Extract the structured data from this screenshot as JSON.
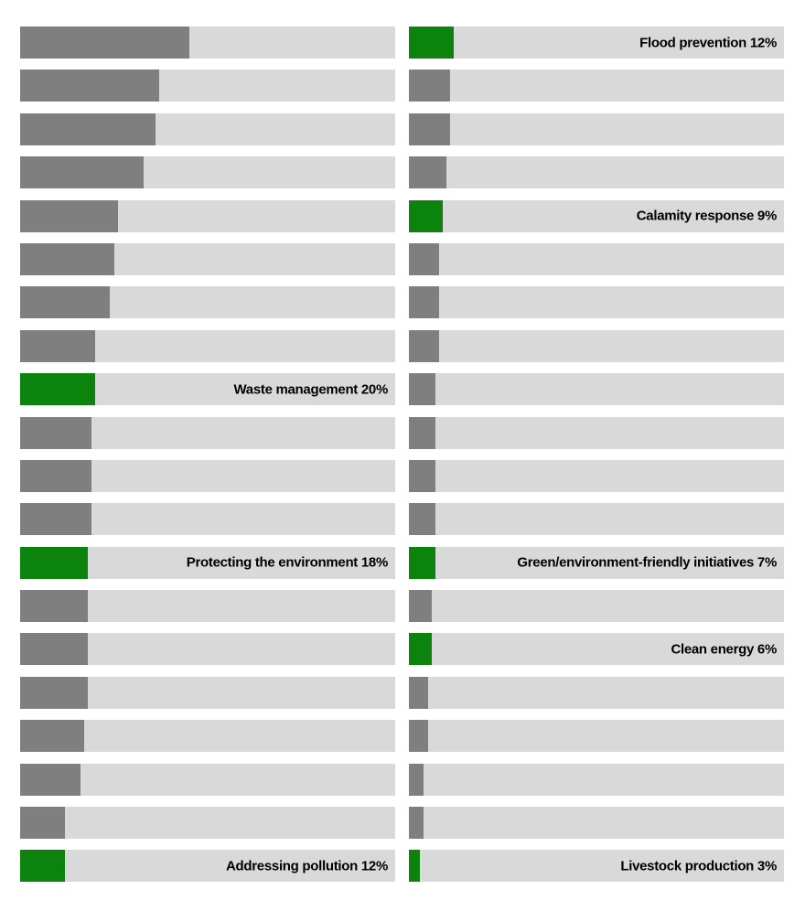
{
  "chart_data": {
    "type": "bar",
    "orientation": "horizontal",
    "title": "",
    "xlabel": "",
    "ylabel": "",
    "unit": "%",
    "xlim": [
      0,
      100
    ],
    "legend": "none",
    "grid": false,
    "layout": "two-column panel of 20 stacked percentage bars each, sorted descending; only highlighted (green) bars carry labels",
    "colors": {
      "highlight": "#0c830c",
      "default": "#7f7f7f",
      "track": "#d9d9d9",
      "label_text": "#000000",
      "background": "#ffffff"
    },
    "columns": [
      {
        "name": "left",
        "bars": [
          {
            "v": 45
          },
          {
            "v": 37
          },
          {
            "v": 36
          },
          {
            "v": 33
          },
          {
            "v": 26
          },
          {
            "v": 25
          },
          {
            "v": 24
          },
          {
            "v": 20
          },
          {
            "v": 20,
            "hl": true,
            "label": "Waste management 20%"
          },
          {
            "v": 19
          },
          {
            "v": 19
          },
          {
            "v": 19
          },
          {
            "v": 18,
            "hl": true,
            "label": "Protecting the environment 18%"
          },
          {
            "v": 18
          },
          {
            "v": 18
          },
          {
            "v": 18
          },
          {
            "v": 17
          },
          {
            "v": 16
          },
          {
            "v": 12
          },
          {
            "v": 12,
            "hl": true,
            "label": "Addressing pollution 12%"
          }
        ]
      },
      {
        "name": "right",
        "bars": [
          {
            "v": 12,
            "hl": true,
            "label": "Flood prevention 12%"
          },
          {
            "v": 11
          },
          {
            "v": 11
          },
          {
            "v": 10
          },
          {
            "v": 9,
            "hl": true,
            "label": "Calamity response 9%"
          },
          {
            "v": 8
          },
          {
            "v": 8
          },
          {
            "v": 8
          },
          {
            "v": 7
          },
          {
            "v": 7
          },
          {
            "v": 7
          },
          {
            "v": 7
          },
          {
            "v": 7,
            "hl": true,
            "label": "Green/environment-friendly initiatives 7%"
          },
          {
            "v": 6
          },
          {
            "v": 6,
            "hl": true,
            "label": "Clean energy 6%"
          },
          {
            "v": 5
          },
          {
            "v": 5
          },
          {
            "v": 4
          },
          {
            "v": 4
          },
          {
            "v": 3,
            "hl": true,
            "label": "Livestock production 3%"
          }
        ]
      }
    ]
  }
}
